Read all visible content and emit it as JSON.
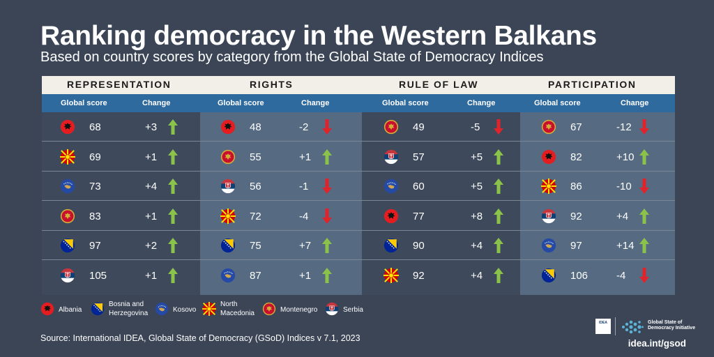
{
  "title": "Ranking democracy in the Western Balkans",
  "subtitle": "Based on country scores by category from the Global State of Democracy Indices",
  "colors": {
    "background": "#3b4556",
    "column_dark": "#3e4a5c",
    "column_light": "#566a82",
    "header_blue": "#2f6a9f",
    "category_band": "#f2efe9",
    "up_arrow": "#8bc34a",
    "down_arrow": "#e0242b"
  },
  "icons": {
    "up": "green-up-arrow-icon",
    "down": "red-down-arrow-icon"
  },
  "chart_data": {
    "type": "table",
    "columns": [
      "Global score",
      "Change"
    ],
    "categories": [
      {
        "name": "REPRESENTATION",
        "score_header": "Global score",
        "change_header": "Change",
        "rows": [
          {
            "country": "Albania",
            "score": "68",
            "change": "+3",
            "direction": "up"
          },
          {
            "country": "North Macedonia",
            "score": "69",
            "change": "+1",
            "direction": "up"
          },
          {
            "country": "Kosovo",
            "score": "73",
            "change": "+4",
            "direction": "up"
          },
          {
            "country": "Montenegro",
            "score": "83",
            "change": "+1",
            "direction": "up"
          },
          {
            "country": "Bosnia and Herzegovina",
            "score": "97",
            "change": "+2",
            "direction": "up"
          },
          {
            "country": "Serbia",
            "score": "105",
            "change": "+1",
            "direction": "up"
          }
        ]
      },
      {
        "name": "RIGHTS",
        "score_header": "Global score",
        "change_header": "Change",
        "rows": [
          {
            "country": "Albania",
            "score": "48",
            "change": "-2",
            "direction": "down"
          },
          {
            "country": "Montenegro",
            "score": "55",
            "change": "+1",
            "direction": "up"
          },
          {
            "country": "Serbia",
            "score": "56",
            "change": "-1",
            "direction": "down"
          },
          {
            "country": "North Macedonia",
            "score": "72",
            "change": "-4",
            "direction": "down"
          },
          {
            "country": "Bosnia and Herzegovina",
            "score": "75",
            "change": "+7",
            "direction": "up"
          },
          {
            "country": "Kosovo",
            "score": "87",
            "change": "+1",
            "direction": "up"
          }
        ]
      },
      {
        "name": "RULE OF LAW",
        "score_header": "Global score",
        "change_header": "Change",
        "rows": [
          {
            "country": "Montenegro",
            "score": "49",
            "change": "-5",
            "direction": "down"
          },
          {
            "country": "Serbia",
            "score": "57",
            "change": "+5",
            "direction": "up"
          },
          {
            "country": "Kosovo",
            "score": "60",
            "change": "+5",
            "direction": "up"
          },
          {
            "country": "Albania",
            "score": "77",
            "change": "+8",
            "direction": "up"
          },
          {
            "country": "Bosnia and Herzegovina",
            "score": "90",
            "change": "+4",
            "direction": "up"
          },
          {
            "country": "North Macedonia",
            "score": "92",
            "change": "+4",
            "direction": "up"
          }
        ]
      },
      {
        "name": "PARTICIPATION",
        "score_header": "Global score",
        "change_header": "Change",
        "rows": [
          {
            "country": "Montenegro",
            "score": "67",
            "change": "-12",
            "direction": "down"
          },
          {
            "country": "Albania",
            "score": "82",
            "change": "+10",
            "direction": "up"
          },
          {
            "country": "North Macedonia",
            "score": "86",
            "change": "-10",
            "direction": "down"
          },
          {
            "country": "Serbia",
            "score": "92",
            "change": "+4",
            "direction": "up"
          },
          {
            "country": "Kosovo",
            "score": "97",
            "change": "+14",
            "direction": "up"
          },
          {
            "country": "Bosnia and Herzegovina",
            "score": "106",
            "change": "-4",
            "direction": "down"
          }
        ]
      }
    ]
  },
  "legend": [
    {
      "country": "Albania",
      "label_lines": [
        "Albania"
      ]
    },
    {
      "country": "Bosnia and Herzegovina",
      "label_lines": [
        "Bosnia and",
        "Herzegovina"
      ]
    },
    {
      "country": "Kosovo",
      "label_lines": [
        "Kosovo"
      ]
    },
    {
      "country": "North Macedonia",
      "label_lines": [
        "North",
        "Macedonia"
      ]
    },
    {
      "country": "Montenegro",
      "label_lines": [
        "Montenegro"
      ]
    },
    {
      "country": "Serbia",
      "label_lines": [
        "Serbia"
      ]
    }
  ],
  "source": "Source: International IDEA, Global State of Democracy (GSoD) Indices v 7.1, 2023",
  "logo": {
    "idea_text": "IDEA",
    "gsod_line1": "Global State of",
    "gsod_line2": "Democracy Initiative",
    "url": "idea.int/gsod"
  }
}
